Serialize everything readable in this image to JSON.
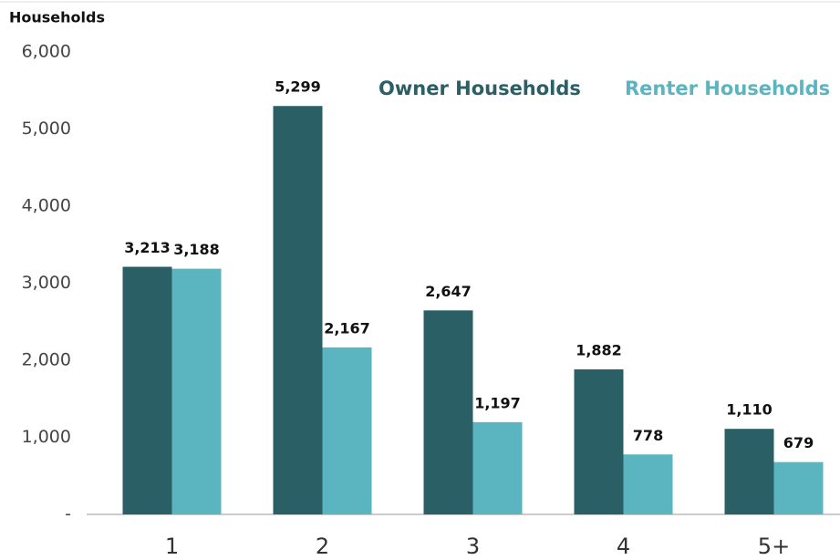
{
  "chart_data": {
    "type": "bar",
    "y_label": "Households",
    "categories": [
      "1",
      "2",
      "3",
      "4",
      "5+"
    ],
    "series": [
      {
        "name": "Owner Households",
        "color": "#2a5f66",
        "values": [
          3213,
          5299,
          2647,
          1882,
          1110
        ],
        "value_labels": [
          "3,213",
          "5,299",
          "2,647",
          "1,882",
          "1,110"
        ]
      },
      {
        "name": "Renter Households",
        "color": "#5ab5c0",
        "values": [
          3188,
          2167,
          1197,
          778,
          679
        ],
        "value_labels": [
          "3,188",
          "2,167",
          "1,197",
          "778",
          "679"
        ]
      }
    ],
    "ylim": [
      0,
      6000
    ],
    "yticks": [
      {
        "value": 0,
        "label": "-"
      },
      {
        "value": 1000,
        "label": "1,000"
      },
      {
        "value": 2000,
        "label": "2,000"
      },
      {
        "value": 3000,
        "label": "3,000"
      },
      {
        "value": 4000,
        "label": "4,000"
      },
      {
        "value": 5000,
        "label": "5,000"
      },
      {
        "value": 6000,
        "label": "6,000"
      }
    ],
    "grid": false,
    "legend": "top-right"
  }
}
